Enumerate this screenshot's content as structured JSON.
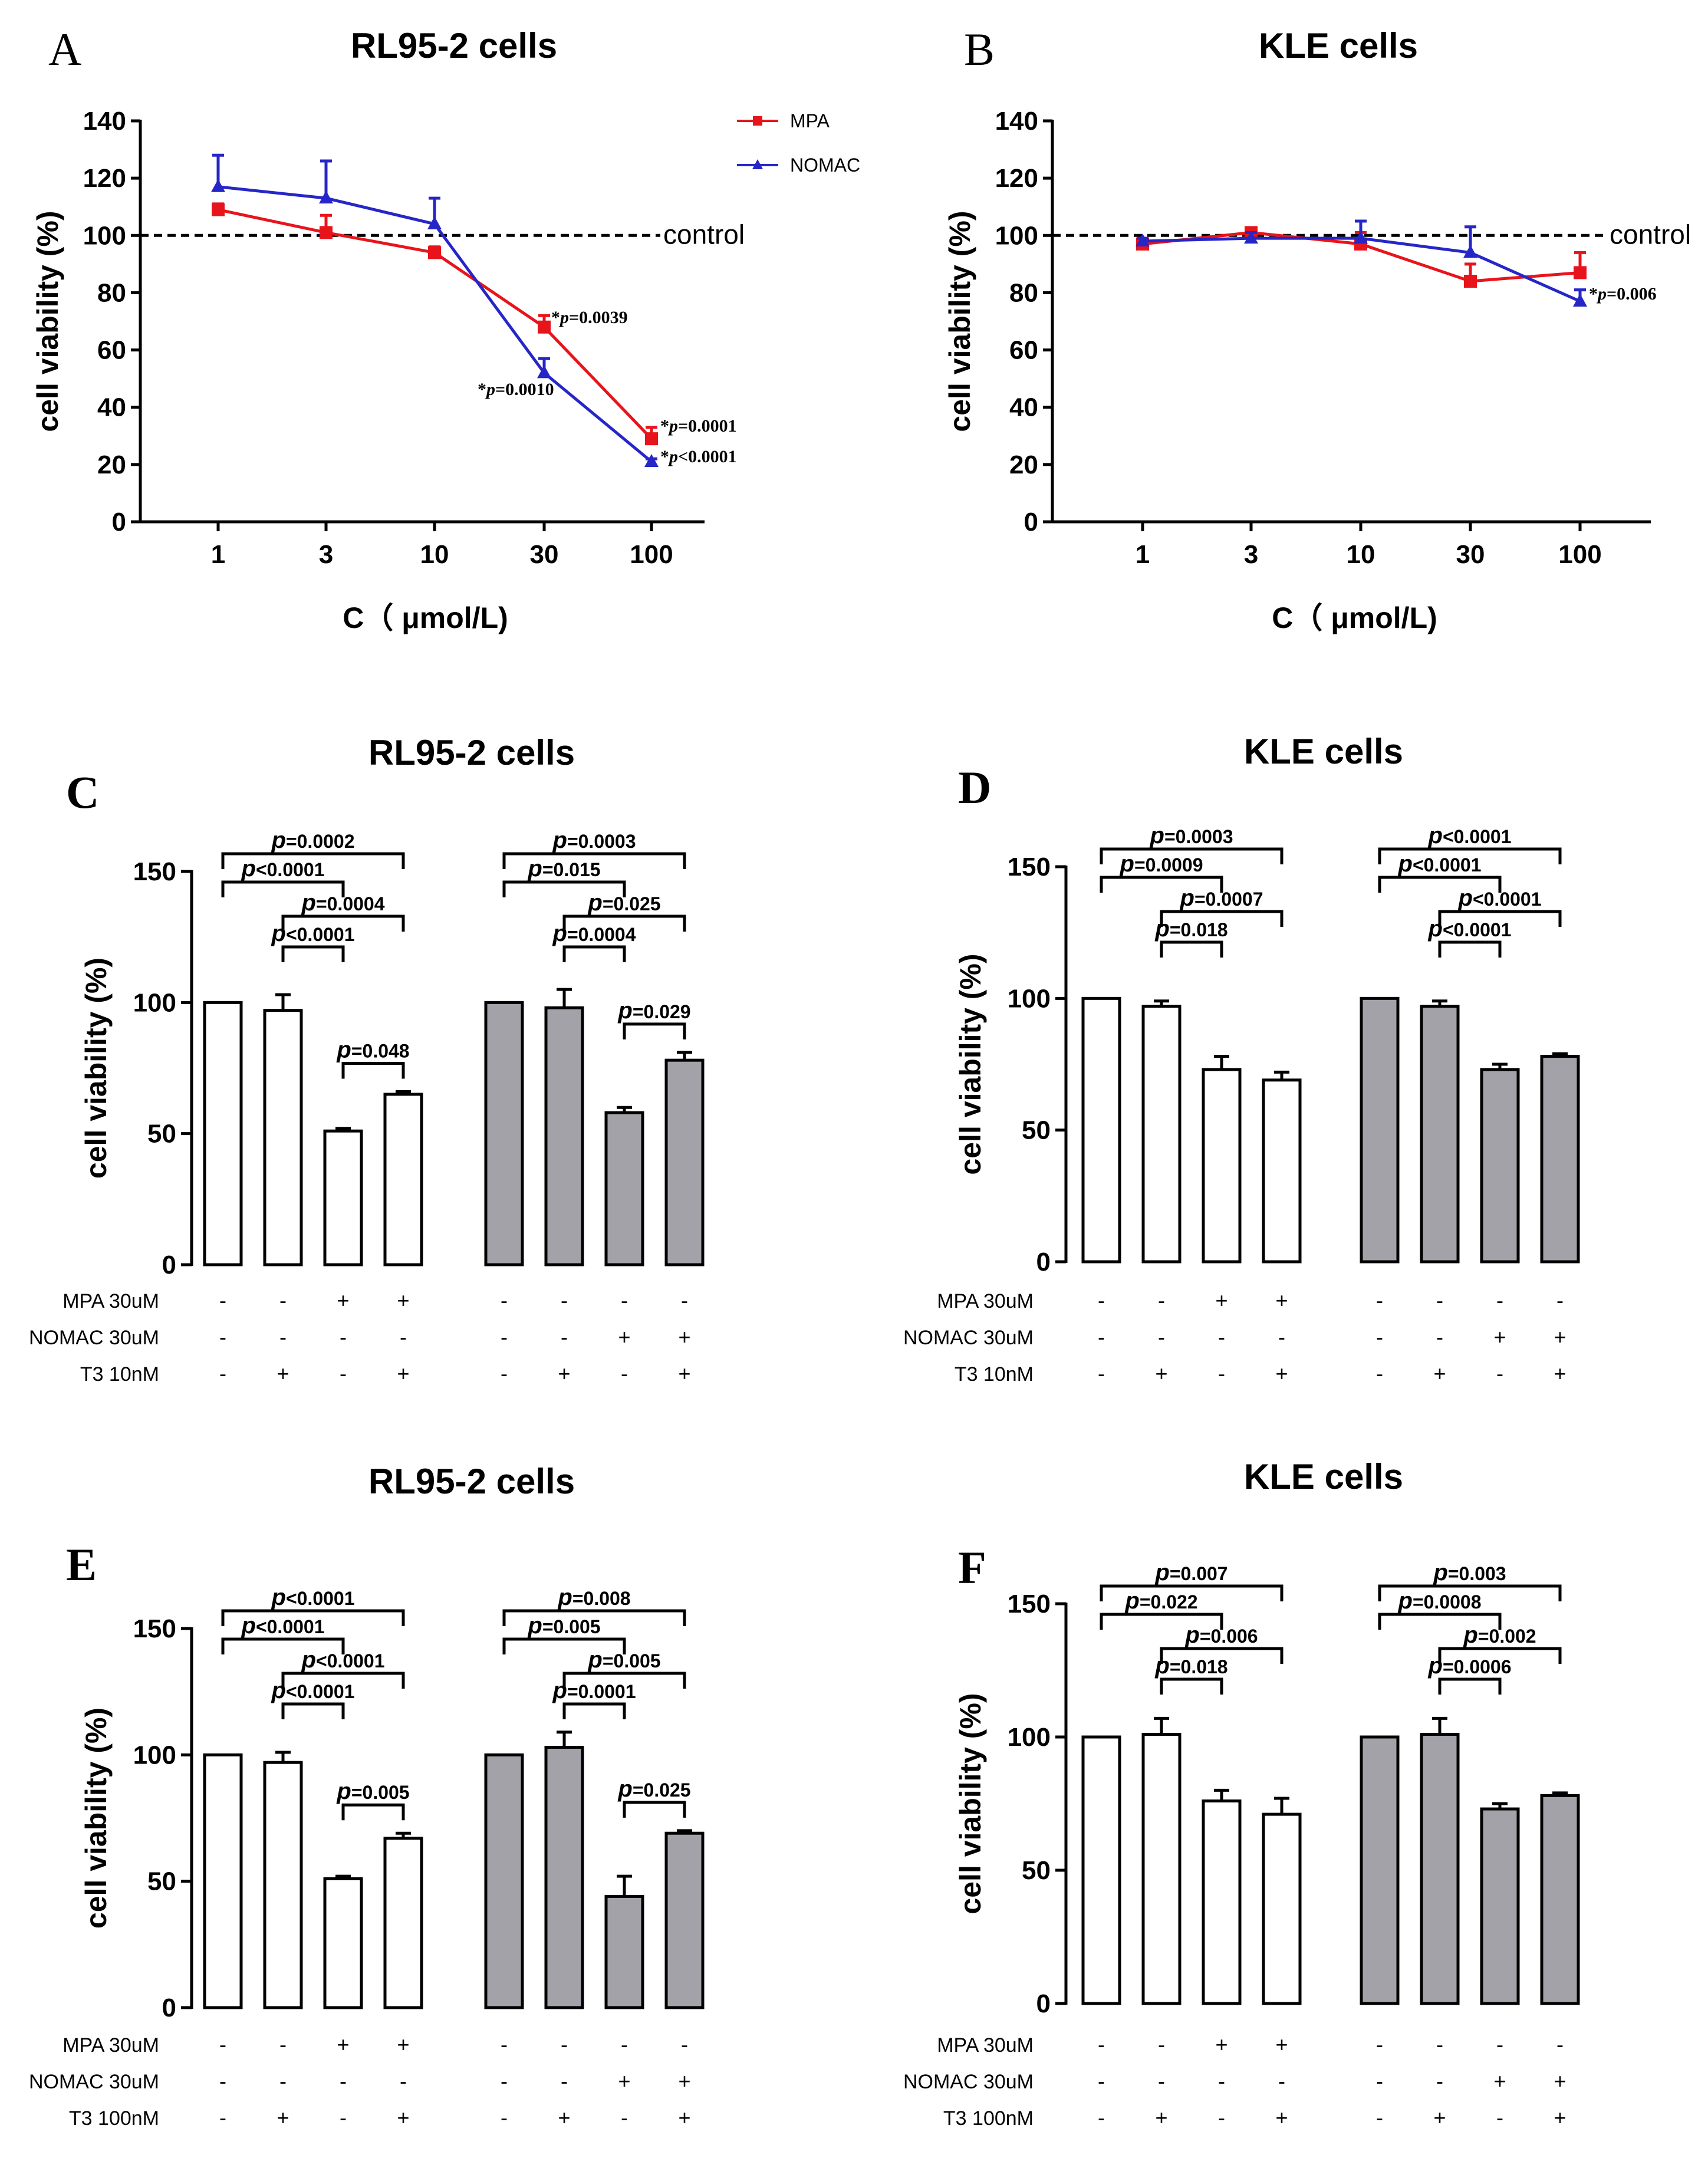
{
  "figure": {
    "colors": {
      "mpa": "#e8141b",
      "nomac": "#2626c8",
      "bar_white": "#ffffff",
      "bar_gray": "#a3a2a8",
      "ink": "#000000"
    }
  },
  "chart_data": [
    {
      "type": "line",
      "panel": "A",
      "title": "RL95-2 cells",
      "xlabel": "C（ μmol/L)",
      "ylabel": "cell viability (%)",
      "x_scale": "log",
      "categories": [
        "1",
        "3",
        "10",
        "30",
        "100"
      ],
      "x": [
        1,
        3,
        10,
        30,
        100
      ],
      "ylim": [
        0,
        140
      ],
      "yticks": [
        "0",
        "20",
        "40",
        "60",
        "80",
        "100",
        "120",
        "140"
      ],
      "reference_line": {
        "value": 100,
        "label": "control"
      },
      "legend_position": "top-right",
      "series": [
        {
          "name": "MPA",
          "color": "#e8141b",
          "marker": "square",
          "values": [
            109,
            101,
            94,
            68,
            29
          ],
          "errors": [
            2,
            6,
            2,
            4,
            4
          ]
        },
        {
          "name": "NOMAC",
          "color": "#2626c8",
          "marker": "triangle",
          "values": [
            117,
            113,
            104,
            52,
            21
          ],
          "errors": [
            11,
            13,
            9,
            5,
            1
          ]
        }
      ],
      "annotations": [
        {
          "star": "*",
          "p": "p",
          "rest": "=0.0039"
        },
        {
          "star": "*",
          "p": "p",
          "rest": "=0.0010"
        },
        {
          "star": "*",
          "p": "p",
          "rest": "=0.0001"
        },
        {
          "star": "*",
          "p": "p",
          "rest": "<0.0001"
        }
      ]
    },
    {
      "type": "line",
      "panel": "B",
      "title": "KLE   cells",
      "xlabel": "C（ μmol/L)",
      "ylabel": "cell viability (%)",
      "x_scale": "log",
      "categories": [
        "1",
        "3",
        "10",
        "30",
        "100"
      ],
      "x": [
        1,
        3,
        10,
        30,
        100
      ],
      "ylim": [
        0,
        140
      ],
      "yticks": [
        "0",
        "20",
        "40",
        "60",
        "80",
        "100",
        "120",
        "140"
      ],
      "reference_line": {
        "value": 100,
        "label": "control"
      },
      "series": [
        {
          "name": "MPA",
          "color": "#e8141b",
          "marker": "square",
          "values": [
            97,
            101,
            97,
            84,
            87
          ],
          "errors": [
            2,
            1,
            4,
            6,
            7
          ]
        },
        {
          "name": "NOMAC",
          "color": "#2626c8",
          "marker": "triangle",
          "values": [
            98,
            99,
            99,
            94,
            77
          ],
          "errors": [
            1,
            2,
            6,
            9,
            4
          ]
        }
      ],
      "annotations": [
        {
          "star": "*",
          "p": "p",
          "rest": "=0.006"
        }
      ]
    },
    {
      "type": "bar",
      "panel": "C",
      "title": "RL95-2 cells",
      "ylabel": "cell viability (%)",
      "ylim": [
        0,
        150
      ],
      "yticks": [
        "0",
        "50",
        "100",
        "150"
      ],
      "groups": [
        {
          "fill": "white",
          "values": [
            100,
            97,
            51,
            65
          ],
          "errors": [
            0,
            6,
            1,
            1
          ]
        },
        {
          "fill": "gray",
          "values": [
            100,
            98,
            58,
            78
          ],
          "errors": [
            0,
            7,
            2,
            3
          ]
        }
      ],
      "treatment_labels": [
        "MPA  30uM",
        "NOMAC 30uM",
        "T3  10nM"
      ],
      "treatment_matrix": [
        [
          "-",
          "-",
          "+",
          "+",
          "-",
          "-",
          "-",
          "-"
        ],
        [
          "-",
          "-",
          "-",
          "-",
          "-",
          "-",
          "+",
          "+"
        ],
        [
          "-",
          "+",
          "-",
          "+",
          "-",
          "+",
          "-",
          "+"
        ]
      ],
      "comparisons": [
        {
          "from": 0,
          "to": 3,
          "label": "=0.0002"
        },
        {
          "from": 0,
          "to": 2,
          "label": "<0.0001"
        },
        {
          "from": 1,
          "to": 3,
          "label": "=0.0004"
        },
        {
          "from": 1,
          "to": 2,
          "label": "<0.0001"
        },
        {
          "from": 2,
          "to": 3,
          "label": "=0.048"
        },
        {
          "from": 4,
          "to": 7,
          "label": "=0.0003"
        },
        {
          "from": 4,
          "to": 6,
          "label": "=0.015"
        },
        {
          "from": 5,
          "to": 7,
          "label": "=0.025"
        },
        {
          "from": 5,
          "to": 6,
          "label": "=0.0004"
        },
        {
          "from": 6,
          "to": 7,
          "label": "=0.029"
        }
      ]
    },
    {
      "type": "bar",
      "panel": "D",
      "title": "KLE   cells",
      "ylabel": "cell viability (%)",
      "ylim": [
        0,
        150
      ],
      "yticks": [
        "0",
        "50",
        "100",
        "150"
      ],
      "groups": [
        {
          "fill": "white",
          "values": [
            100,
            97,
            73,
            69
          ],
          "errors": [
            0,
            2,
            5,
            3
          ]
        },
        {
          "fill": "gray",
          "values": [
            100,
            97,
            73,
            78
          ],
          "errors": [
            0,
            2,
            2,
            1
          ]
        }
      ],
      "treatment_labels": [
        "MPA  30uM",
        "NOMAC 30uM",
        "T3  10nM"
      ],
      "treatment_matrix": [
        [
          "-",
          "-",
          "+",
          "+",
          "-",
          "-",
          "-",
          "-"
        ],
        [
          "-",
          "-",
          "-",
          "-",
          "-",
          "-",
          "+",
          "+"
        ],
        [
          "-",
          "+",
          "-",
          "+",
          "-",
          "+",
          "-",
          "+"
        ]
      ],
      "comparisons": [
        {
          "from": 0,
          "to": 3,
          "label": "=0.0003"
        },
        {
          "from": 0,
          "to": 2,
          "label": "=0.0009"
        },
        {
          "from": 1,
          "to": 3,
          "label": "=0.0007"
        },
        {
          "from": 1,
          "to": 2,
          "label": "=0.018"
        },
        {
          "from": 4,
          "to": 7,
          "label": "<0.0001"
        },
        {
          "from": 4,
          "to": 6,
          "label": "<0.0001"
        },
        {
          "from": 5,
          "to": 7,
          "label": "<0.0001"
        },
        {
          "from": 5,
          "to": 6,
          "label": "<0.0001"
        }
      ]
    },
    {
      "type": "bar",
      "panel": "E",
      "title": "RL95-2 cells",
      "ylabel": "cell viability (%)",
      "ylim": [
        0,
        150
      ],
      "yticks": [
        "0",
        "50",
        "100",
        "150"
      ],
      "groups": [
        {
          "fill": "white",
          "values": [
            100,
            97,
            51,
            67
          ],
          "errors": [
            0,
            4,
            1,
            2
          ]
        },
        {
          "fill": "gray",
          "values": [
            100,
            103,
            44,
            69
          ],
          "errors": [
            0,
            6,
            8,
            1
          ]
        }
      ],
      "treatment_labels": [
        "MPA  30uM",
        "NOMAC 30uM",
        "T3  100nM"
      ],
      "treatment_matrix": [
        [
          "-",
          "-",
          "+",
          "+",
          "-",
          "-",
          "-",
          "-"
        ],
        [
          "-",
          "-",
          "-",
          "-",
          "-",
          "-",
          "+",
          "+"
        ],
        [
          "-",
          "+",
          "-",
          "+",
          "-",
          "+",
          "-",
          "+"
        ]
      ],
      "comparisons": [
        {
          "from": 0,
          "to": 3,
          "label": "<0.0001"
        },
        {
          "from": 0,
          "to": 2,
          "label": "<0.0001"
        },
        {
          "from": 1,
          "to": 3,
          "label": "<0.0001"
        },
        {
          "from": 1,
          "to": 2,
          "label": "<0.0001"
        },
        {
          "from": 2,
          "to": 3,
          "label": "=0.005"
        },
        {
          "from": 4,
          "to": 7,
          "label": "=0.008"
        },
        {
          "from": 4,
          "to": 6,
          "label": "=0.005"
        },
        {
          "from": 5,
          "to": 7,
          "label": "=0.005"
        },
        {
          "from": 5,
          "to": 6,
          "label": "=0.0001"
        },
        {
          "from": 6,
          "to": 7,
          "label": "=0.025"
        }
      ]
    },
    {
      "type": "bar",
      "panel": "F",
      "title": "KLE   cells",
      "ylabel": "cell viability (%)",
      "ylim": [
        0,
        150
      ],
      "yticks": [
        "0",
        "50",
        "100",
        "150"
      ],
      "groups": [
        {
          "fill": "white",
          "values": [
            100,
            101,
            76,
            71
          ],
          "errors": [
            0,
            6,
            4,
            6
          ]
        },
        {
          "fill": "gray",
          "values": [
            100,
            101,
            73,
            78
          ],
          "errors": [
            0,
            6,
            2,
            1
          ]
        }
      ],
      "treatment_labels": [
        "MPA  30uM",
        "NOMAC 30uM",
        "T3  100nM"
      ],
      "treatment_matrix": [
        [
          "-",
          "-",
          "+",
          "+",
          "-",
          "-",
          "-",
          "-"
        ],
        [
          "-",
          "-",
          "-",
          "-",
          "-",
          "-",
          "+",
          "+"
        ],
        [
          "-",
          "+",
          "-",
          "+",
          "-",
          "+",
          "-",
          "+"
        ]
      ],
      "comparisons": [
        {
          "from": 0,
          "to": 3,
          "label": "=0.007"
        },
        {
          "from": 0,
          "to": 2,
          "label": "=0.022"
        },
        {
          "from": 1,
          "to": 3,
          "label": "=0.006"
        },
        {
          "from": 1,
          "to": 2,
          "label": "=0.018"
        },
        {
          "from": 4,
          "to": 7,
          "label": "=0.003"
        },
        {
          "from": 4,
          "to": 6,
          "label": "=0.0008"
        },
        {
          "from": 5,
          "to": 7,
          "label": "=0.002"
        },
        {
          "from": 5,
          "to": 6,
          "label": "=0.0006"
        }
      ]
    }
  ]
}
